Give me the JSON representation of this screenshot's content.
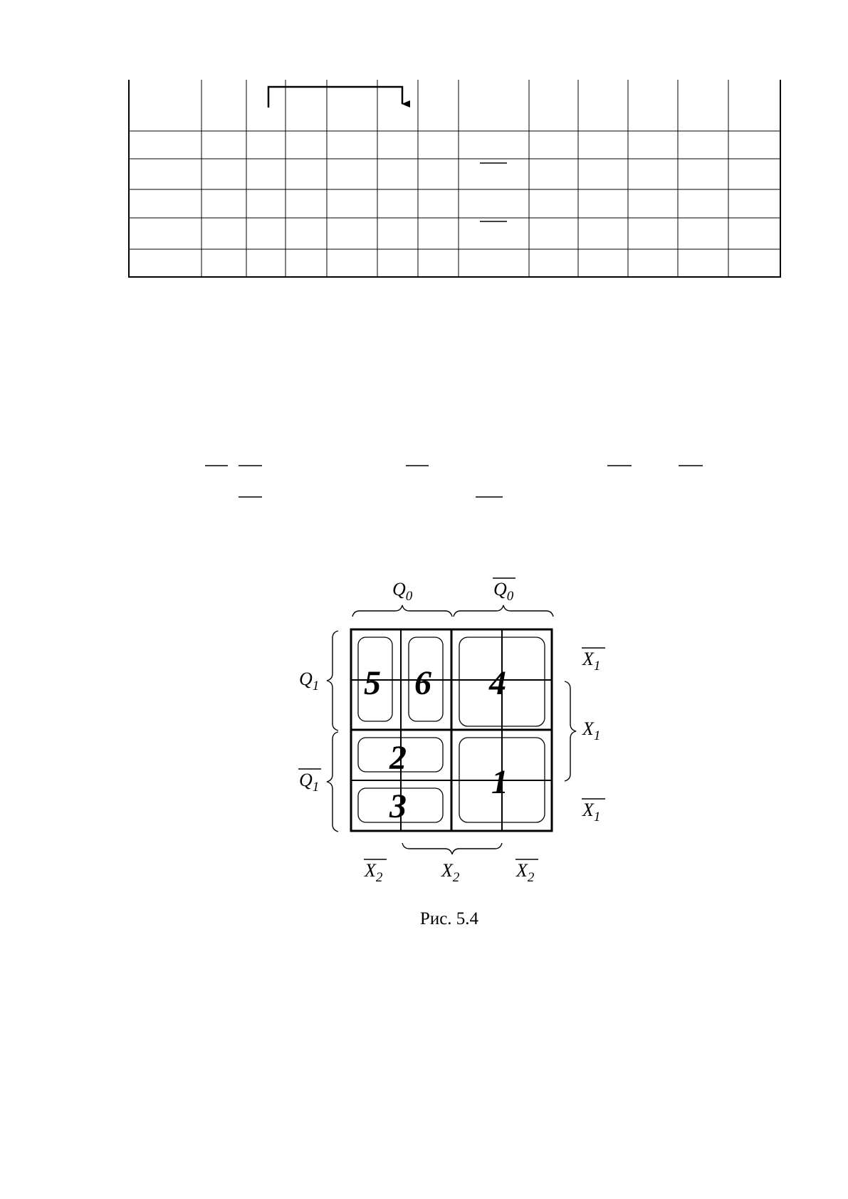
{
  "table": {
    "rows": 6,
    "cols": 13,
    "cells": []
  },
  "figure": {
    "caption": "Рис. 5.4",
    "top_labels": [
      {
        "id": "q0",
        "base": "Q",
        "sub": "0",
        "negated": false
      },
      {
        "id": "q0-bar",
        "base": "Q",
        "sub": "0",
        "negated": true
      }
    ],
    "left_labels": [
      {
        "id": "q1",
        "base": "Q",
        "sub": "1",
        "negated": false
      },
      {
        "id": "q1-bar",
        "base": "Q",
        "sub": "1",
        "negated": true
      }
    ],
    "right_labels": [
      {
        "id": "x1-bar-top",
        "base": "X",
        "sub": "1",
        "negated": true
      },
      {
        "id": "x1",
        "base": "X",
        "sub": "1",
        "negated": false
      },
      {
        "id": "x1-bar-bottom",
        "base": "X",
        "sub": "1",
        "negated": true
      }
    ],
    "bottom_labels": [
      {
        "id": "x2-bar-left",
        "base": "X",
        "sub": "2",
        "negated": true
      },
      {
        "id": "x2",
        "base": "X",
        "sub": "2",
        "negated": false
      },
      {
        "id": "x2-bar-right",
        "base": "X",
        "sub": "2",
        "negated": true
      }
    ],
    "groups": [
      {
        "id": "group-5",
        "number": "5"
      },
      {
        "id": "group-6",
        "number": "6"
      },
      {
        "id": "group-4",
        "number": "4"
      },
      {
        "id": "group-2",
        "number": "2"
      },
      {
        "id": "group-3",
        "number": "3"
      },
      {
        "id": "group-1",
        "number": "1"
      }
    ]
  }
}
